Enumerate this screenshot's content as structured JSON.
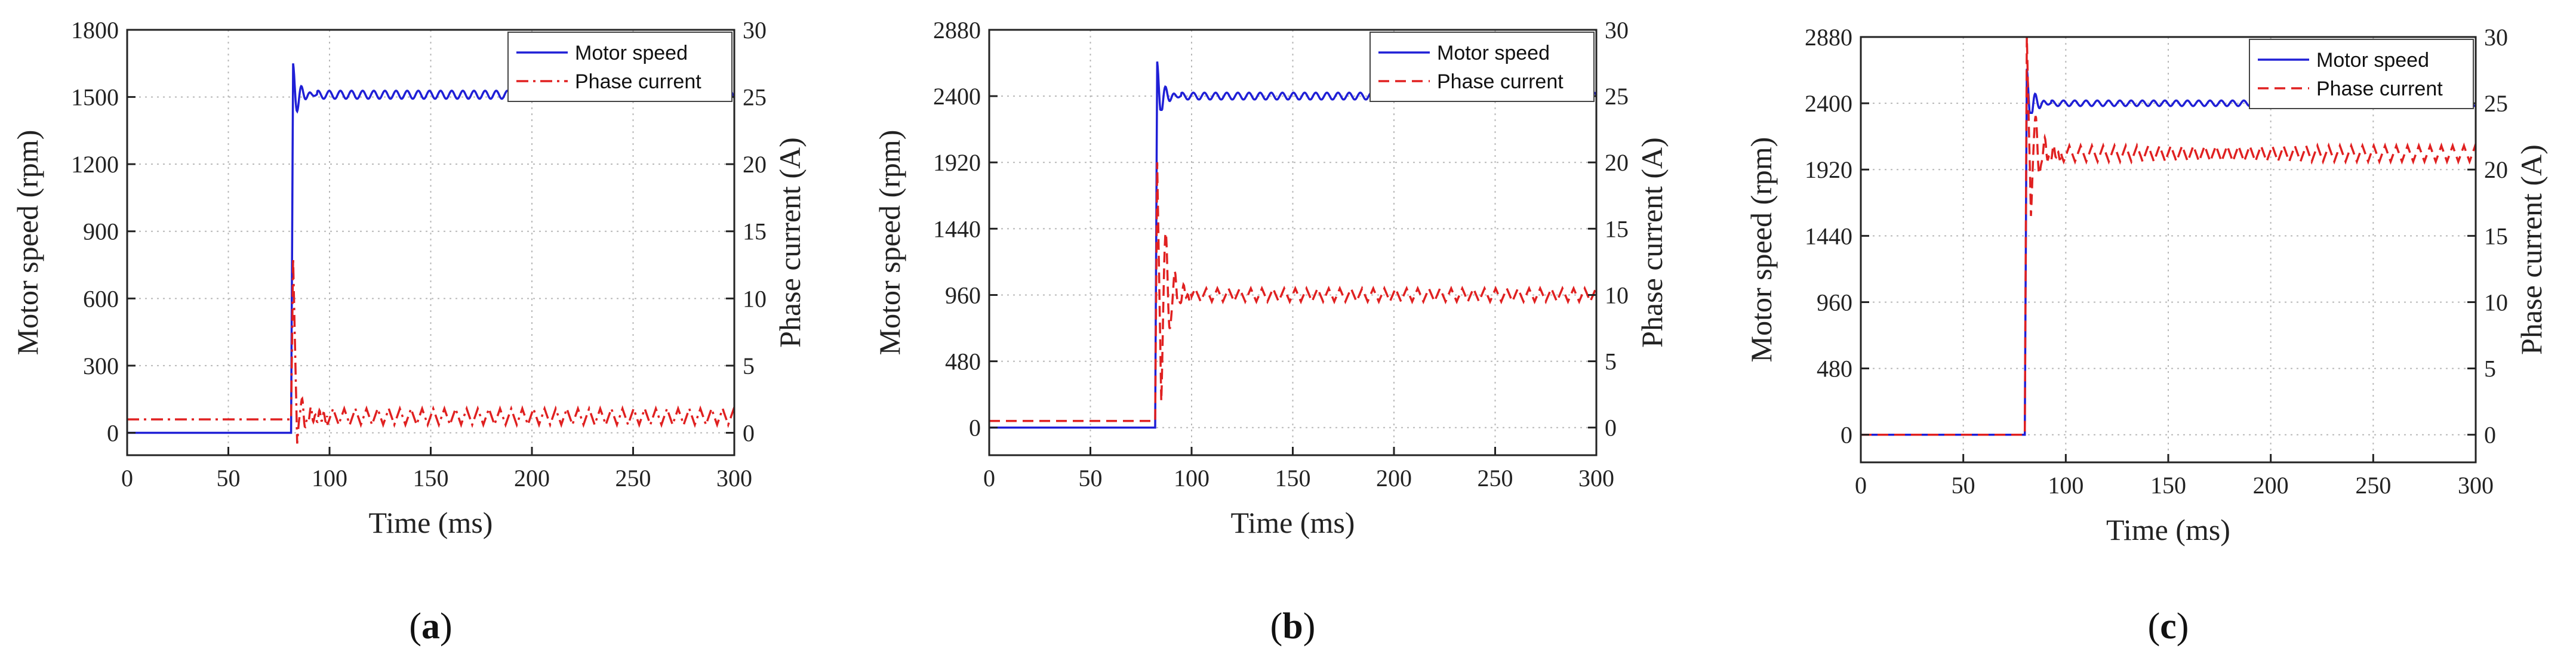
{
  "chart_data": [
    {
      "type": "line",
      "panel": "a",
      "caption_open": "(",
      "caption_letter": "a",
      "caption_close": ")",
      "xlabel": "Time (ms)",
      "ylabel": "Motor speed (rpm)",
      "y2label": "Phase current (A)",
      "xlim": [
        0,
        300
      ],
      "ylim": [
        -100,
        1800
      ],
      "y2lim": [
        -1.6667,
        30
      ],
      "xticks": [
        0,
        50,
        100,
        150,
        200,
        250,
        300
      ],
      "yticks": [
        0,
        300,
        600,
        900,
        1200,
        1500,
        1800
      ],
      "y2ticks": [
        0,
        5,
        10,
        15,
        20,
        25,
        30
      ],
      "grid": true,
      "legend_position": "top-right",
      "series": [
        {
          "name": "Motor speed",
          "axis": "left",
          "color": "#1f1fd6",
          "dash": "solid",
          "initial": 0,
          "step_time": 81,
          "peak": 1650,
          "peak_time": 82,
          "undershoot": 1420,
          "second_peak": 1540,
          "steady": 1510,
          "ripple_amplitude": 18,
          "ripple_period": 5.5
        },
        {
          "name": "Phase current",
          "axis": "right",
          "color": "#e02020",
          "dash": "dashdot",
          "initial": 1.0,
          "step_time": 81,
          "spike": 13.0,
          "dip": -0.8,
          "steady": 1.2,
          "ripple_amplitude": 0.6,
          "ripple_period": 5.5
        }
      ]
    },
    {
      "type": "line",
      "panel": "b",
      "caption_open": "(",
      "caption_letter": "b",
      "caption_close": ")",
      "xlabel": "Time (ms)",
      "ylabel": "Motor speed (rpm)",
      "y2label": "Phase current (A)",
      "xlim": [
        0,
        300
      ],
      "ylim": [
        -200,
        2880
      ],
      "y2lim": [
        -2.0833,
        30
      ],
      "xticks": [
        0,
        50,
        100,
        150,
        200,
        250,
        300
      ],
      "yticks": [
        0,
        480,
        960,
        1440,
        1920,
        2400,
        2880
      ],
      "y2ticks": [
        0,
        5,
        10,
        15,
        20,
        25,
        30
      ],
      "grid": true,
      "legend_position": "top-right",
      "series": [
        {
          "name": "Motor speed",
          "axis": "left",
          "color": "#1f1fd6",
          "dash": "solid",
          "initial": 0,
          "step_time": 82,
          "peak": 2650,
          "peak_time": 83,
          "undershoot": 2300,
          "second_peak": 2480,
          "steady": 2400,
          "ripple_amplitude": 25,
          "ripple_period": 5.5
        },
        {
          "name": "Phase current",
          "axis": "right",
          "color": "#e02020",
          "dash": "dashed",
          "initial": 0.5,
          "step_time": 82,
          "spike": 20.0,
          "dip": 2.0,
          "steady": 10.0,
          "ripple_amplitude": 0.5,
          "ripple_period": 5.5
        }
      ]
    },
    {
      "type": "line",
      "panel": "c",
      "caption_open": "(",
      "caption_letter": "c",
      "caption_close": ")",
      "xlabel": "Time (ms)",
      "ylabel": "Motor speed (rpm)",
      "y2label": "Phase current (A)",
      "xlim": [
        0,
        300
      ],
      "ylim": [
        -200,
        2880
      ],
      "y2lim": [
        -2.0833,
        30
      ],
      "xticks": [
        0,
        50,
        100,
        150,
        200,
        250,
        300
      ],
      "yticks": [
        0,
        480,
        960,
        1440,
        1920,
        2400,
        2880
      ],
      "y2ticks": [
        0,
        5,
        10,
        15,
        20,
        25,
        30
      ],
      "grid": true,
      "legend_position": "top-right",
      "series": [
        {
          "name": "Motor speed",
          "axis": "left",
          "color": "#1f1fd6",
          "dash": "solid",
          "initial": 0,
          "step_time": 80,
          "peak": 2650,
          "peak_time": 81,
          "undershoot": 2330,
          "second_peak": 2470,
          "steady": 2400,
          "ripple_amplitude": 20,
          "ripple_period": 5.5
        },
        {
          "name": "Phase current",
          "axis": "right",
          "color": "#e02020",
          "dash": "dashed",
          "initial": 0,
          "step_time": 80,
          "spike": 30.0,
          "dip": 16.5,
          "steady": 21.2,
          "ripple_amplitude": 0.6,
          "ripple_period": 5.5
        }
      ]
    }
  ]
}
